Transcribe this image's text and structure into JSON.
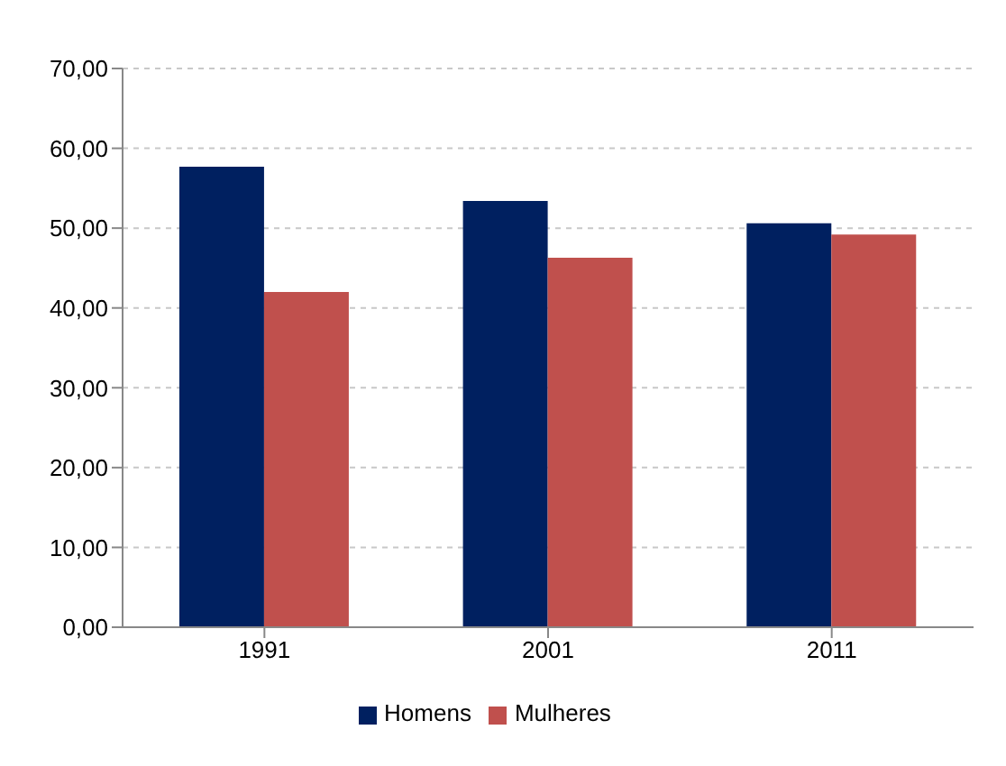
{
  "chart_data": {
    "type": "bar",
    "categories": [
      "1991",
      "2001",
      "2011"
    ],
    "series": [
      {
        "name": "Homens",
        "color": "#002060",
        "values": [
          57.7,
          53.4,
          50.6
        ]
      },
      {
        "name": "Mulheres",
        "color": "#c0504d",
        "values": [
          42.0,
          46.3,
          49.2
        ]
      }
    ],
    "ylim": [
      0,
      70
    ],
    "yticks": [
      {
        "value": 0,
        "label": "0,00"
      },
      {
        "value": 10,
        "label": "10,00"
      },
      {
        "value": 20,
        "label": "20,00"
      },
      {
        "value": 30,
        "label": "30,00"
      },
      {
        "value": 40,
        "label": "40,00"
      },
      {
        "value": 50,
        "label": "50,00"
      },
      {
        "value": 60,
        "label": "60,00"
      },
      {
        "value": 70,
        "label": "70,00"
      }
    ],
    "grid": "y",
    "legend": "bottom"
  }
}
